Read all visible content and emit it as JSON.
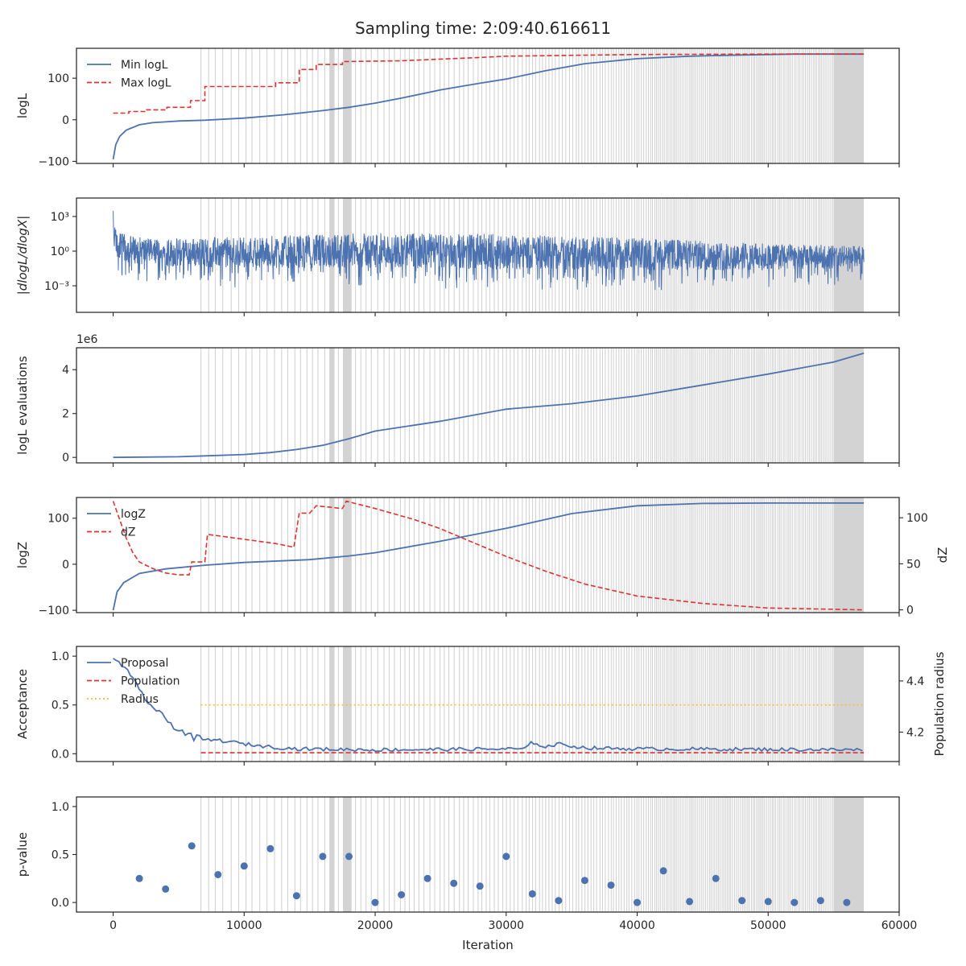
{
  "figure": {
    "title": "Sampling time: 2:09:40.616611"
  },
  "colors": {
    "blue": "#4c72b0",
    "red": "#dd3333",
    "yellow": "#f0c330",
    "shade": "#d3d3d3",
    "axis": "#262626"
  },
  "chart_data": [
    {
      "id": "logl",
      "type": "line",
      "ylabel": "logL",
      "xlim": [
        -2800,
        60000
      ],
      "ylim": [
        -105,
        172
      ],
      "yticks": [
        -100,
        0,
        100
      ],
      "ytick_labels": [
        "−100",
        "0",
        "100"
      ],
      "legend": {
        "placement": "top-left",
        "entries": [
          "Min logL",
          "Max logL"
        ]
      },
      "series": [
        {
          "name": "Min logL",
          "style": "solid",
          "color": "blue",
          "points": [
            [
              0,
              -95
            ],
            [
              200,
              -60
            ],
            [
              500,
              -40
            ],
            [
              1000,
              -25
            ],
            [
              2000,
              -12
            ],
            [
              3000,
              -7
            ],
            [
              4000,
              -5
            ],
            [
              5000,
              -3
            ],
            [
              7000,
              -1
            ],
            [
              10000,
              4
            ],
            [
              13000,
              12
            ],
            [
              16000,
              22
            ],
            [
              18000,
              30
            ],
            [
              20000,
              40
            ],
            [
              22000,
              52
            ],
            [
              25000,
              72
            ],
            [
              28000,
              88
            ],
            [
              30000,
              98
            ],
            [
              33000,
              118
            ],
            [
              36000,
              135
            ],
            [
              40000,
              147
            ],
            [
              44000,
              153
            ],
            [
              48000,
              156
            ],
            [
              52000,
              158
            ],
            [
              57300,
              158
            ]
          ]
        },
        {
          "name": "Max logL",
          "style": "dashed",
          "color": "red",
          "points": [
            [
              0,
              16
            ],
            [
              1200,
              16
            ],
            [
              1200,
              20
            ],
            [
              2500,
              20
            ],
            [
              2500,
              24
            ],
            [
              4100,
              24
            ],
            [
              4100,
              30
            ],
            [
              5900,
              30
            ],
            [
              5900,
              46
            ],
            [
              7000,
              46
            ],
            [
              7000,
              80
            ],
            [
              12400,
              80
            ],
            [
              12400,
              89
            ],
            [
              14200,
              89
            ],
            [
              14200,
              121
            ],
            [
              15500,
              121
            ],
            [
              15500,
              133
            ],
            [
              17500,
              133
            ],
            [
              17500,
              140
            ],
            [
              22000,
              142
            ],
            [
              28000,
              150
            ],
            [
              30000,
              153
            ],
            [
              40000,
              157
            ],
            [
              50000,
              158
            ],
            [
              57300,
              158
            ]
          ]
        }
      ]
    },
    {
      "id": "dlogl",
      "type": "line",
      "ylabel": "|dlogL/dlogX|",
      "log_y": true,
      "xlim": [
        -2800,
        60000
      ],
      "ylim_log10": [
        -5.3,
        4.6
      ],
      "yticks_log10": [
        -3,
        0,
        3
      ],
      "ytick_labels": [
        "10⁻³",
        "10⁰",
        "10³"
      ],
      "series": [
        {
          "name": "",
          "style": "noisy",
          "color": "blue",
          "envelope_log10": [
            [
              0,
              2.5,
              -1.5
            ],
            [
              500,
              1.5,
              -2.0
            ],
            [
              3000,
              1.0,
              -2.5
            ],
            [
              10000,
              1.2,
              -2.6
            ],
            [
              20000,
              1.5,
              -2.6
            ],
            [
              30000,
              1.4,
              -2.7
            ],
            [
              40000,
              1.1,
              -2.8
            ],
            [
              50000,
              0.6,
              -2.8
            ],
            [
              57300,
              0.4,
              -2.6
            ]
          ]
        }
      ]
    },
    {
      "id": "evals",
      "type": "line",
      "ylabel": "logL evaluations",
      "offset_text": "1e6",
      "xlim": [
        -2800,
        60000
      ],
      "ylim": [
        -0.25,
        5.0
      ],
      "yticks": [
        0,
        2,
        4
      ],
      "ytick_labels": [
        "0",
        "2",
        "4"
      ],
      "series": [
        {
          "name": "",
          "style": "solid",
          "color": "blue",
          "points": [
            [
              0,
              0.0
            ],
            [
              5000,
              0.03
            ],
            [
              7000,
              0.07
            ],
            [
              10000,
              0.13
            ],
            [
              12000,
              0.22
            ],
            [
              14000,
              0.36
            ],
            [
              16000,
              0.55
            ],
            [
              18000,
              0.85
            ],
            [
              20000,
              1.2
            ],
            [
              25000,
              1.65
            ],
            [
              30000,
              2.2
            ],
            [
              35000,
              2.45
            ],
            [
              40000,
              2.8
            ],
            [
              45000,
              3.3
            ],
            [
              50000,
              3.8
            ],
            [
              55000,
              4.35
            ],
            [
              57300,
              4.75
            ]
          ]
        }
      ]
    },
    {
      "id": "logz",
      "type": "line",
      "ylabel": "logZ",
      "y2label": "dZ",
      "xlim": [
        -2800,
        60000
      ],
      "ylim": [
        -105,
        145
      ],
      "yticks": [
        -100,
        0,
        100
      ],
      "ytick_labels": [
        "−100",
        "0",
        "100"
      ],
      "y2lim": [
        -3,
        122
      ],
      "y2ticks": [
        0,
        50,
        100
      ],
      "y2tick_labels": [
        "0",
        "50",
        "100"
      ],
      "legend": {
        "placement": "top-left",
        "entries": [
          "logZ",
          "dZ"
        ]
      },
      "series": [
        {
          "name": "logZ",
          "style": "solid",
          "color": "blue",
          "axis": "left",
          "points": [
            [
              0,
              -100
            ],
            [
              300,
              -60
            ],
            [
              800,
              -40
            ],
            [
              2000,
              -20
            ],
            [
              4000,
              -10
            ],
            [
              7000,
              -2
            ],
            [
              10000,
              4
            ],
            [
              15000,
              10
            ],
            [
              18000,
              18
            ],
            [
              20000,
              25
            ],
            [
              25000,
              50
            ],
            [
              30000,
              78
            ],
            [
              35000,
              110
            ],
            [
              40000,
              127
            ],
            [
              45000,
              132
            ],
            [
              50000,
              133
            ],
            [
              57300,
              133
            ]
          ]
        },
        {
          "name": "dZ",
          "style": "dashed",
          "color": "red",
          "axis": "right",
          "points": [
            [
              0,
              118
            ],
            [
              500,
              98
            ],
            [
              1000,
              78
            ],
            [
              1500,
              62
            ],
            [
              2000,
              52
            ],
            [
              3000,
              45
            ],
            [
              4000,
              40
            ],
            [
              5000,
              38
            ],
            [
              5800,
              38
            ],
            [
              6000,
              52
            ],
            [
              7000,
              52
            ],
            [
              7200,
              82
            ],
            [
              12400,
              72
            ],
            [
              13800,
              68
            ],
            [
              14200,
              105
            ],
            [
              15000,
              105
            ],
            [
              15500,
              113
            ],
            [
              17500,
              110
            ],
            [
              17800,
              118
            ],
            [
              20000,
              110
            ],
            [
              23000,
              98
            ],
            [
              25000,
              88
            ],
            [
              28000,
              70
            ],
            [
              30000,
              58
            ],
            [
              33000,
              42
            ],
            [
              36000,
              28
            ],
            [
              40000,
              15
            ],
            [
              45000,
              7
            ],
            [
              50000,
              2
            ],
            [
              57300,
              0
            ]
          ]
        }
      ]
    },
    {
      "id": "acceptance",
      "type": "line",
      "ylabel": "Acceptance",
      "y2label": "Population radius",
      "xlim": [
        -2800,
        60000
      ],
      "ylim": [
        -0.08,
        1.1
      ],
      "yticks": [
        0.0,
        0.5,
        1.0
      ],
      "ytick_labels": [
        "0.0",
        "0.5",
        "1.0"
      ],
      "y2lim": [
        4.085,
        4.535
      ],
      "y2ticks": [
        4.2,
        4.4
      ],
      "y2tick_labels": [
        "4.2",
        "4.4"
      ],
      "legend": {
        "placement": "top-left",
        "entries": [
          "Proposal",
          "Population",
          "Radius"
        ]
      },
      "series": [
        {
          "name": "Proposal",
          "style": "solid",
          "color": "blue",
          "points": [
            [
              0,
              0.98
            ],
            [
              500,
              0.95
            ],
            [
              1000,
              0.85
            ],
            [
              2000,
              0.65
            ],
            [
              3000,
              0.48
            ],
            [
              4000,
              0.35
            ],
            [
              5000,
              0.25
            ],
            [
              6000,
              0.17
            ],
            [
              7000,
              0.14
            ],
            [
              8000,
              0.14
            ],
            [
              10000,
              0.1
            ],
            [
              12000,
              0.07
            ],
            [
              14000,
              0.05
            ],
            [
              20000,
              0.04
            ],
            [
              31500,
              0.05
            ],
            [
              32000,
              0.12
            ],
            [
              33000,
              0.07
            ],
            [
              34000,
              0.1
            ],
            [
              36000,
              0.06
            ],
            [
              40000,
              0.05
            ],
            [
              57300,
              0.04
            ]
          ]
        },
        {
          "name": "Population",
          "style": "dashed",
          "color": "red",
          "points": [
            [
              6700,
              0.01
            ],
            [
              57300,
              0.01
            ]
          ]
        },
        {
          "name": "Radius",
          "style": "dotted",
          "color": "yellow",
          "points": [
            [
              6700,
              0.5
            ],
            [
              57300,
              0.5
            ]
          ]
        }
      ]
    },
    {
      "id": "pvalue",
      "type": "scatter",
      "ylabel": "p-value",
      "xlabel": "Iteration",
      "xlim": [
        -2800,
        60000
      ],
      "xticks": [
        0,
        10000,
        20000,
        30000,
        40000,
        50000,
        60000
      ],
      "xtick_labels": [
        "0",
        "10000",
        "20000",
        "30000",
        "40000",
        "50000",
        "60000"
      ],
      "ylim": [
        -0.1,
        1.1
      ],
      "yticks": [
        0.0,
        0.5,
        1.0
      ],
      "ytick_labels": [
        "0.0",
        "0.5",
        "1.0"
      ],
      "series": [
        {
          "name": "",
          "color": "blue",
          "points": [
            [
              2000,
              0.25
            ],
            [
              4000,
              0.14
            ],
            [
              6000,
              0.59
            ],
            [
              8000,
              0.29
            ],
            [
              10000,
              0.38
            ],
            [
              12000,
              0.56
            ],
            [
              14000,
              0.07
            ],
            [
              16000,
              0.48
            ],
            [
              18000,
              0.48
            ],
            [
              20000,
              0.0
            ],
            [
              22000,
              0.08
            ],
            [
              24000,
              0.25
            ],
            [
              26000,
              0.2
            ],
            [
              28000,
              0.17
            ],
            [
              30000,
              0.48
            ],
            [
              32000,
              0.09
            ],
            [
              34000,
              0.02
            ],
            [
              36000,
              0.23
            ],
            [
              38000,
              0.18
            ],
            [
              40000,
              0.0
            ],
            [
              42000,
              0.33
            ],
            [
              44000,
              0.01
            ],
            [
              46000,
              0.25
            ],
            [
              48000,
              0.02
            ],
            [
              50000,
              0.01
            ],
            [
              52000,
              0.0
            ],
            [
              54000,
              0.02
            ],
            [
              56000,
              0.0
            ]
          ]
        }
      ]
    }
  ]
}
